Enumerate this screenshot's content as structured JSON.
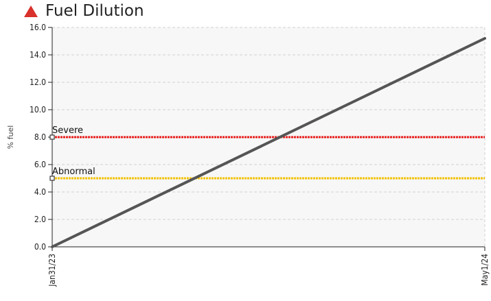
{
  "header": {
    "title": "Fuel Dilution",
    "icon": "alert-triangle-icon",
    "icon_color": "#d9312b"
  },
  "chart_data": {
    "type": "line",
    "title": "Fuel Dilution",
    "xlabel": "",
    "ylabel": "% fuel",
    "ylim": [
      0,
      16
    ],
    "yticks": [
      "0.0",
      "2.0",
      "4.0",
      "6.0",
      "8.0",
      "10.0",
      "12.0",
      "14.0",
      "16.0"
    ],
    "x_ticks": [
      "Jan31/23",
      "May1/24"
    ],
    "grid": true,
    "series": [
      {
        "x": [
          "Jan31/23",
          "May1/24"
        ],
        "values": [
          0.0,
          15.2
        ],
        "color": "#555555"
      }
    ],
    "thresholds": [
      {
        "name": "Severe",
        "value": 8.0,
        "color": "#e81e1e"
      },
      {
        "name": "Abnormal",
        "value": 5.0,
        "color": "#f2c200"
      }
    ]
  }
}
